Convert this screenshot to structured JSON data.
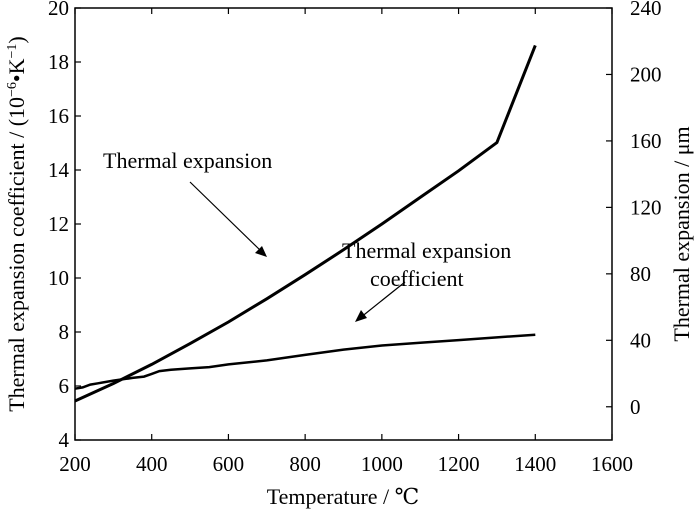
{
  "chart_data": {
    "type": "line",
    "x_label": "Temperature / ℃",
    "y_label_left": "Thermal expansion coefficient / (10",
    "y_label_left_exp": "−6",
    "y_label_left_mid": "•K",
    "y_label_left_exp2": "−1",
    "y_label_left_end": ")",
    "y_label_right": "Thermal expansion / μm",
    "xlim": [
      200,
      1600
    ],
    "ylim_left": [
      4,
      20
    ],
    "ylim_right": [
      -20,
      240
    ],
    "x_ticks": [
      "200",
      "400",
      "600",
      "800",
      "1000",
      "1200",
      "1400",
      "1600"
    ],
    "y_ticks_left": [
      "4",
      "6",
      "8",
      "10",
      "12",
      "14",
      "16",
      "18",
      "20"
    ],
    "y_ticks_right": [
      "0",
      "40",
      "80",
      "120",
      "160",
      "200",
      "240"
    ],
    "grid": false,
    "annotations": {
      "thermal_expansion": "Thermal expansion",
      "coefficient_line1": "Thermal expansion",
      "coefficient_line2": "coefficient"
    },
    "series": [
      {
        "name": "Thermal expansion",
        "axis": "right",
        "x": [
          200,
          300,
          400,
          500,
          600,
          700,
          800,
          900,
          1000,
          1100,
          1200,
          1300,
          1400
        ],
        "y": [
          3.5,
          14,
          25.5,
          38,
          51,
          65,
          79.5,
          94.5,
          110,
          126,
          142,
          159,
          217.5
        ]
      },
      {
        "name": "Thermal expansion coefficient",
        "axis": "left",
        "x": [
          200,
          220,
          240,
          260,
          300,
          350,
          380,
          400,
          420,
          450,
          500,
          550,
          600,
          700,
          800,
          900,
          1000,
          1100,
          1200,
          1300,
          1400
        ],
        "y": [
          5.9,
          5.95,
          6.05,
          6.1,
          6.2,
          6.3,
          6.35,
          6.45,
          6.55,
          6.6,
          6.65,
          6.7,
          6.8,
          6.95,
          7.15,
          7.35,
          7.5,
          7.6,
          7.7,
          7.8,
          7.9
        ]
      }
    ]
  }
}
